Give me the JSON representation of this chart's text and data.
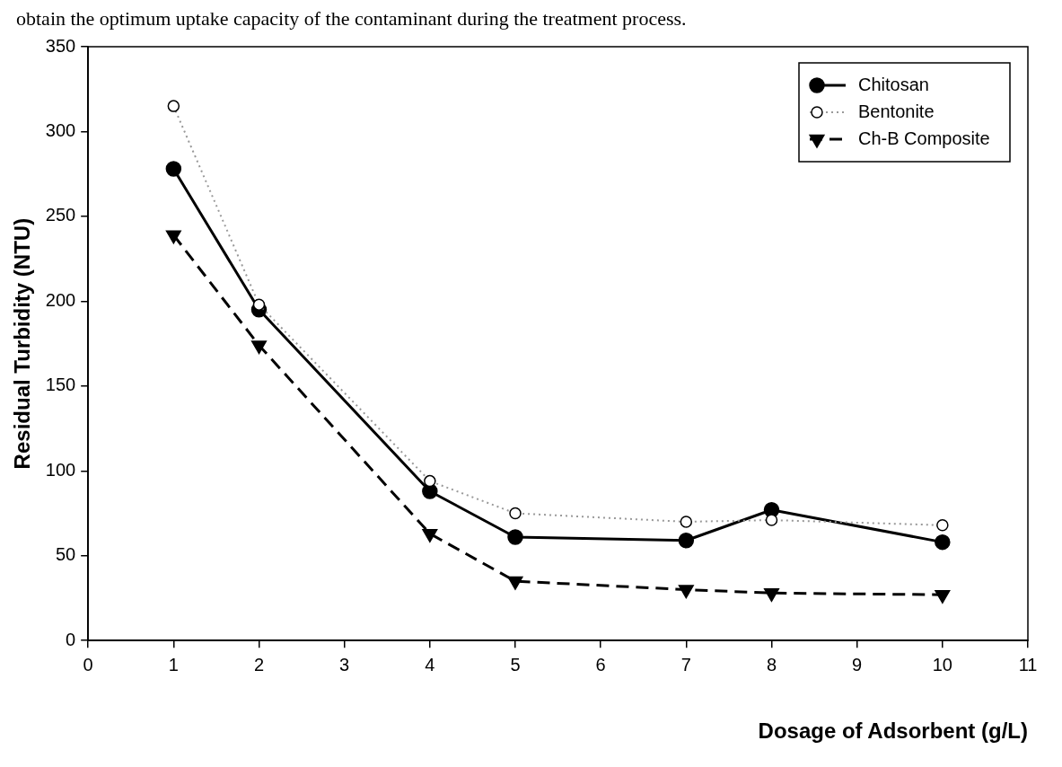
{
  "chart_data": {
    "type": "line",
    "xlabel": "Dosage of Adsorbent (g/L)",
    "ylabel": "Residual Turbidity (NTU)",
    "annotations": [
      "obtain the optimum uptake capacity of the contaminant during the treatment process."
    ],
    "x": [
      1,
      2,
      4,
      5,
      7,
      8,
      10
    ],
    "series": [
      {
        "name": "Chitosan",
        "color": "#000000",
        "marker": "circle",
        "line_style": "solid",
        "values": [
          278,
          195,
          88,
          61,
          59,
          77,
          58
        ]
      },
      {
        "name": "Bentonite",
        "color": "#999999",
        "marker": "circle",
        "line_style": "dotted",
        "values": [
          315,
          198,
          94,
          75,
          70,
          71,
          68
        ]
      },
      {
        "name": "Ch-B Composite",
        "color": "#000000",
        "marker": "triangle",
        "line_style": "dashed",
        "values": [
          239,
          174,
          63,
          35,
          30,
          28,
          27
        ]
      }
    ],
    "xlim": [
      0,
      11
    ],
    "xticks": [
      0,
      1,
      2,
      3,
      4,
      5,
      6,
      7,
      8,
      9,
      10,
      11
    ],
    "ylim": [
      0,
      350
    ],
    "yticks": [
      0,
      50,
      100,
      150,
      200,
      250,
      300,
      350
    ],
    "grid": false,
    "legend": "top right"
  }
}
